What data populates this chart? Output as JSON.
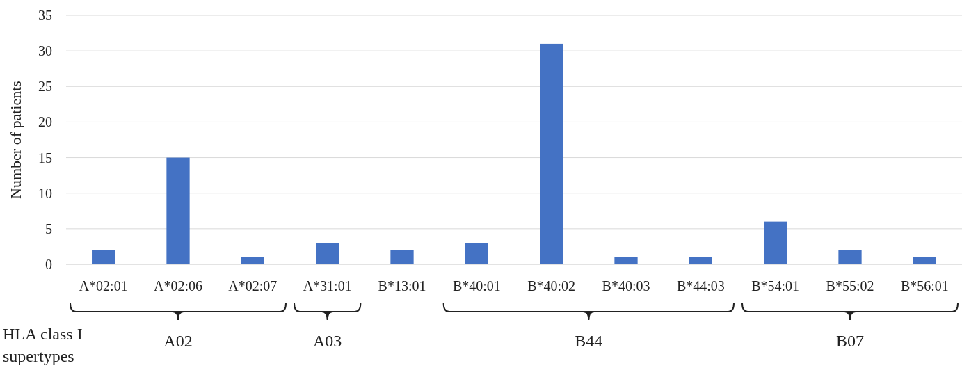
{
  "chart_data": {
    "type": "bar",
    "ylabel": "Number of patients",
    "categories": [
      "A*02:01",
      "A*02:06",
      "A*02:07",
      "A*31:01",
      "B*13:01",
      "B*40:01",
      "B*40:02",
      "B*40:03",
      "B*44:03",
      "B*54:01",
      "B*55:02",
      "B*56:01"
    ],
    "values": [
      2,
      15,
      1,
      3,
      2,
      3,
      31,
      1,
      1,
      6,
      2,
      1
    ],
    "color": "#4472c4",
    "ylim": [
      0,
      35
    ],
    "yticks": [
      0,
      5,
      10,
      15,
      20,
      25,
      30,
      35
    ],
    "grid": "y",
    "annotations": [
      "A02",
      "A03",
      "B44",
      "B07",
      "HLA class I supertypes"
    ]
  }
}
